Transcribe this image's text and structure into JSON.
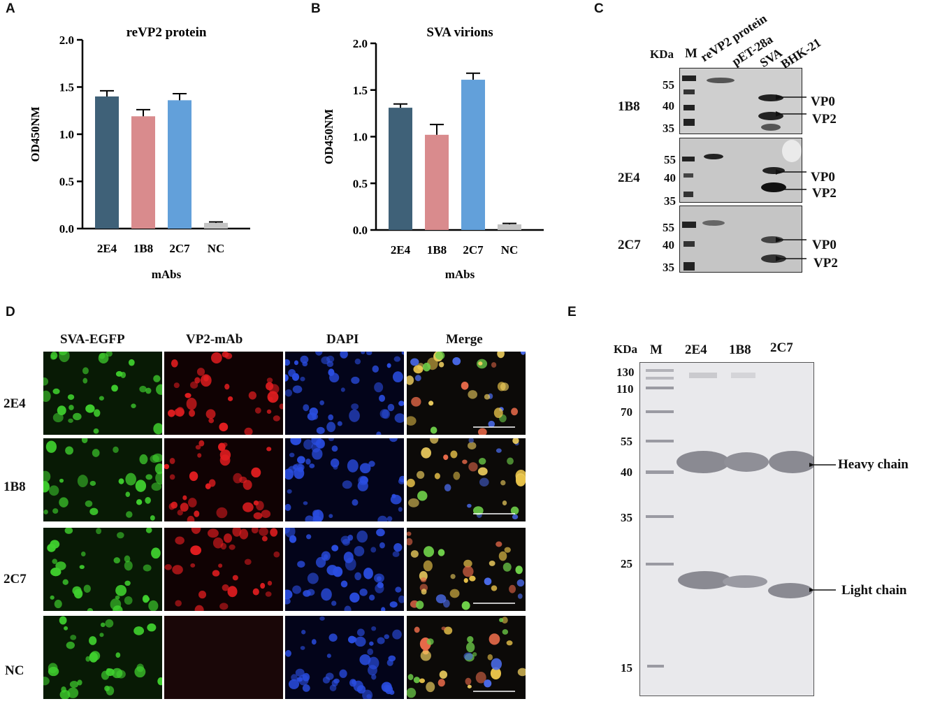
{
  "panels": {
    "a": "A",
    "b": "B",
    "c": "C",
    "d": "D",
    "e": "E"
  },
  "colors": {
    "bar_2E4": "#3f6178",
    "bar_1B8": "#d98b8d",
    "bar_2C7": "#62a0da",
    "bar_NC": "#c4c4c4",
    "egfp": "#3fcf2e",
    "mab": "#e21d20",
    "dapi": "#2a4de0"
  },
  "chart_data": [
    {
      "type": "bar",
      "title": "reVP2 protein",
      "xlabel": "mAbs",
      "ylabel": "OD450NM",
      "categories": [
        "2E4",
        "1B8",
        "2C7",
        "NC"
      ],
      "values": [
        1.4,
        1.19,
        1.36,
        0.06
      ],
      "errors": [
        0.06,
        0.07,
        0.07,
        0.01
      ],
      "ylim": [
        0.0,
        2.0
      ],
      "yticks": [
        "0.0",
        "0.5",
        "1.0",
        "1.5",
        "2.0"
      ]
    },
    {
      "type": "bar",
      "title": "SVA virions",
      "xlabel": "mAbs",
      "ylabel": "OD450NM",
      "categories": [
        "2E4",
        "1B8",
        "2C7",
        "NC"
      ],
      "values": [
        1.31,
        1.02,
        1.61,
        0.06
      ],
      "errors": [
        0.04,
        0.11,
        0.07,
        0.01
      ],
      "ylim": [
        0.0,
        2.0
      ],
      "yticks": [
        "0.0",
        "0.5",
        "1.0",
        "1.5",
        "2.0"
      ]
    }
  ],
  "westernC": {
    "kda": "KDa",
    "marker": "M",
    "lanes": [
      "reVP2 protein",
      "pET-28a",
      "SVA",
      "BHK-21"
    ],
    "blots": [
      {
        "name": "1B8",
        "ticks": [
          "55",
          "40",
          "35"
        ],
        "bands": [
          "VP0",
          "VP2"
        ]
      },
      {
        "name": "2E4",
        "ticks": [
          "55",
          "40",
          "35"
        ],
        "bands": [
          "VP0",
          "VP2"
        ]
      },
      {
        "name": "2C7",
        "ticks": [
          "55",
          "40",
          "35"
        ],
        "bands": [
          "VP0",
          "VP2"
        ]
      }
    ]
  },
  "ifaD": {
    "columns": [
      "SVA-EGFP",
      "VP2-mAb",
      "DAPI",
      "Merge"
    ],
    "rows": [
      "2E4",
      "1B8",
      "2C7",
      "NC"
    ]
  },
  "gelE": {
    "kda": "KDa",
    "lanes": [
      "M",
      "2E4",
      "1B8",
      "2C7"
    ],
    "ticks": [
      "130",
      "110",
      "70",
      "55",
      "40",
      "35",
      "25",
      "15"
    ],
    "bands": [
      "Heavy chain",
      "Light chain"
    ]
  }
}
